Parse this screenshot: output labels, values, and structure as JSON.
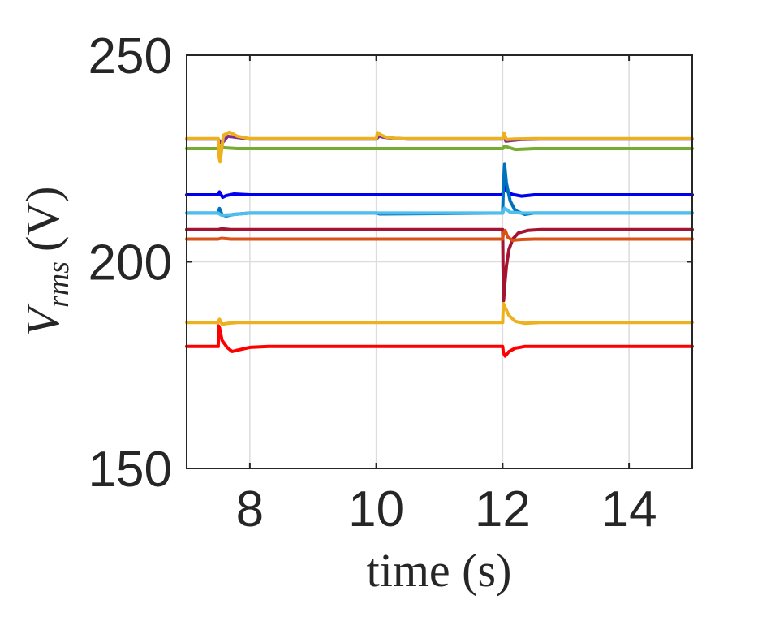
{
  "chart_data": {
    "type": "line",
    "title": "",
    "xlabel": "time (s)",
    "ylabel": {
      "base": "V",
      "sub": "rms",
      "unit": "(V)"
    },
    "xlim": [
      7,
      15
    ],
    "ylim": [
      150,
      250
    ],
    "xticks": [
      8,
      10,
      12,
      14
    ],
    "yticks": [
      150,
      200,
      250
    ],
    "xtick_labels": [
      "8",
      "10",
      "12",
      "14"
    ],
    "ytick_labels": [
      "150",
      "200",
      "250"
    ],
    "grid": true,
    "series": [
      {
        "color": "#7E2F8E",
        "x": [
          7,
          7.5,
          7.52,
          7.56,
          7.65,
          7.8,
          8,
          10,
          10.05,
          10.1,
          10.25,
          10.5,
          12,
          12.02,
          12.05,
          12.15,
          12.3,
          12.6,
          15
        ],
        "y": [
          229.7,
          229.7,
          229.2,
          228.7,
          230.4,
          230.1,
          229.7,
          229.7,
          230.5,
          230.2,
          229.9,
          229.7,
          229.7,
          230.6,
          229.2,
          229.4,
          229.6,
          229.7,
          229.7
        ]
      },
      {
        "color": "#77AC30",
        "x": [
          7,
          7.5,
          7.52,
          7.6,
          7.8,
          12,
          12.03,
          12.2,
          12.5,
          15
        ],
        "y": [
          227.4,
          227.4,
          228.0,
          227.6,
          227.4,
          227.4,
          228.0,
          227.2,
          227.4,
          227.4
        ]
      },
      {
        "color": "#EDB120",
        "x": [
          7,
          7.5,
          7.51,
          7.53,
          7.58,
          7.68,
          7.8,
          8.0,
          10,
          10.02,
          10.06,
          10.15,
          10.35,
          12,
          12.02,
          12.06,
          12.2,
          12.5,
          15
        ],
        "y": [
          229.8,
          229.8,
          225.5,
          224.2,
          230.6,
          231.4,
          230.4,
          229.8,
          229.8,
          231.3,
          230.8,
          230.2,
          229.8,
          229.8,
          231.2,
          229.6,
          229.7,
          229.8,
          229.8
        ]
      },
      {
        "color": "#0000EE",
        "x": [
          7,
          7.5,
          7.52,
          7.57,
          7.62,
          7.75,
          8.0,
          12,
          12.02,
          12.06,
          12.15,
          12.3,
          12.5,
          15
        ],
        "y": [
          216.2,
          216.2,
          216.9,
          215.6,
          216.0,
          216.4,
          216.2,
          216.2,
          218.5,
          217.2,
          216.3,
          215.9,
          216.2,
          216.2
        ]
      },
      {
        "color": "#0072BD",
        "x": [
          7,
          7.5,
          7.52,
          7.56,
          7.62,
          7.75,
          8.0,
          10,
          10.05,
          12,
          12.01,
          12.03,
          12.06,
          12.12,
          12.2,
          12.35,
          12.5,
          15
        ],
        "y": [
          211.8,
          211.8,
          212.9,
          211.4,
          211.1,
          211.5,
          211.8,
          211.8,
          211.6,
          211.8,
          218.0,
          223.6,
          219.0,
          214.7,
          212.4,
          211.5,
          211.8,
          211.8
        ]
      },
      {
        "color": "#4DBEEE",
        "x": [
          7,
          7.5,
          7.55,
          7.7,
          8.0,
          12,
          12.03,
          12.12,
          12.3,
          15
        ],
        "y": [
          211.8,
          211.8,
          211.3,
          211.4,
          211.8,
          211.8,
          213.0,
          212.0,
          211.8,
          211.8
        ]
      },
      {
        "color": "#A2142F",
        "x": [
          7,
          7.5,
          7.55,
          7.7,
          12,
          12.005,
          12.015,
          12.03,
          12.06,
          12.1,
          12.16,
          12.25,
          12.4,
          12.6,
          15
        ],
        "y": [
          207.8,
          207.8,
          208.0,
          207.8,
          207.8,
          199.0,
          190.6,
          194.0,
          199.0,
          203.0,
          205.5,
          207.0,
          207.6,
          207.8,
          207.8
        ]
      },
      {
        "color": "#D95319",
        "x": [
          7,
          7.5,
          7.55,
          7.7,
          12,
          12.01,
          12.04,
          12.08,
          12.15,
          12.3,
          12.5,
          15
        ],
        "y": [
          205.5,
          205.5,
          205.7,
          205.5,
          205.5,
          206.8,
          207.6,
          206.0,
          205.2,
          205.4,
          205.5,
          205.5
        ]
      },
      {
        "color": "#EDB120",
        "x": [
          7,
          7.5,
          7.52,
          7.56,
          7.65,
          7.8,
          8.0,
          12,
          12.01,
          12.04,
          12.1,
          12.2,
          12.35,
          12.6,
          15
        ],
        "y": [
          185.3,
          185.3,
          186.1,
          184.9,
          185.1,
          185.3,
          185.3,
          185.3,
          189.9,
          188.9,
          187.0,
          185.6,
          185.1,
          185.3,
          185.3
        ]
      },
      {
        "color": "#FF0000",
        "x": [
          7,
          7.5,
          7.505,
          7.52,
          7.56,
          7.64,
          7.72,
          7.8,
          8.0,
          8.3,
          12,
          12.01,
          12.04,
          12.1,
          12.2,
          12.35,
          12.6,
          15
        ],
        "y": [
          179.5,
          179.5,
          184.5,
          184.0,
          181.0,
          179.3,
          178.3,
          178.6,
          179.3,
          179.5,
          179.5,
          178.0,
          177.2,
          178.3,
          179.1,
          179.5,
          179.5,
          179.5
        ]
      }
    ]
  }
}
